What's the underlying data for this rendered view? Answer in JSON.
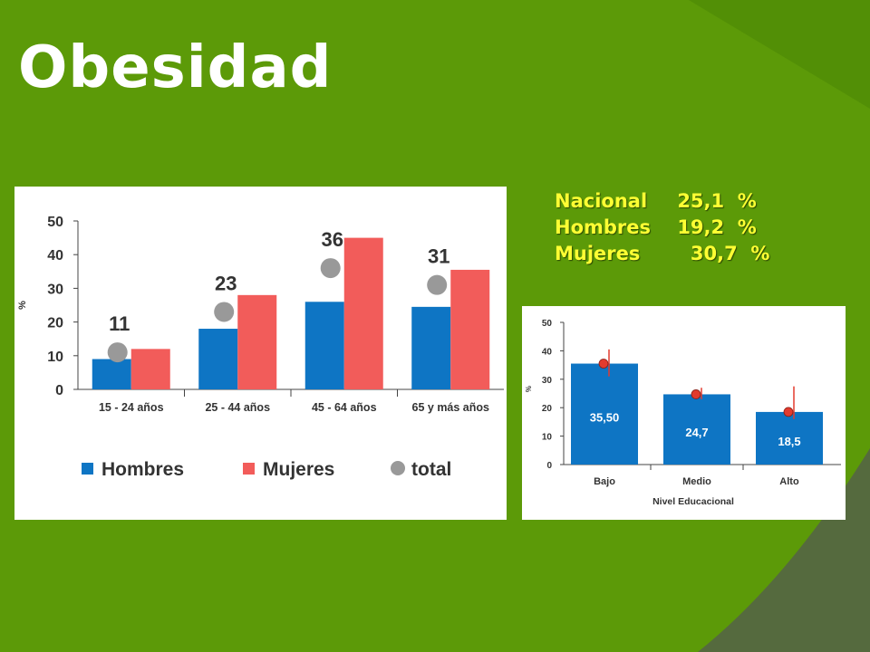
{
  "slide": {
    "title": "Obesidad",
    "colors": {
      "background": "#5c9a08",
      "title": "#ffffff",
      "stats_text": "#ffff33"
    }
  },
  "stats": [
    {
      "label": "Nacional",
      "value": "25,1  %"
    },
    {
      "label": "Hombres",
      "value": "19,2  %"
    },
    {
      "label": "Mujeres",
      "value": "  30,7  %"
    }
  ],
  "chart_data": [
    {
      "type": "bar",
      "ylabel": "%",
      "ylim": [
        0,
        50
      ],
      "yticks": [
        0,
        10,
        20,
        30,
        40,
        50
      ],
      "categories": [
        "15 - 24 años",
        "25 - 44 años",
        "45 - 64 años",
        "65 y más años"
      ],
      "series": [
        {
          "name": "Hombres",
          "color": "#0e75c4",
          "values": [
            9,
            18,
            26,
            24.5
          ]
        },
        {
          "name": "Mujeres",
          "color": "#f25c5a",
          "values": [
            12,
            28,
            45,
            35.5
          ]
        }
      ],
      "total": {
        "name": "total",
        "color": "#999999",
        "values": [
          11,
          23,
          36,
          31
        ],
        "labels": [
          "11",
          "23",
          "36",
          "31"
        ]
      },
      "legend": [
        "Hombres",
        "Mujeres",
        "total"
      ],
      "legend_position": "bottom",
      "grid": false
    },
    {
      "type": "bar",
      "xlabel": "Nivel Educacional",
      "ylabel": "%",
      "ylim": [
        0,
        50
      ],
      "yticks": [
        0,
        10,
        20,
        30,
        40,
        50
      ],
      "categories": [
        "Bajo",
        "Medio",
        "Alto"
      ],
      "values": [
        35.5,
        24.7,
        18.5
      ],
      "data_labels": [
        "35,50",
        "24,7",
        "18,5"
      ],
      "bar_color": "#0e75c4",
      "points": [
        35.5,
        24.7,
        18.5
      ],
      "point_color": "#e23b2e",
      "error_bars": [
        [
          31,
          40.5
        ],
        [
          23,
          27
        ],
        [
          16,
          27.5
        ]
      ],
      "grid": false
    }
  ]
}
